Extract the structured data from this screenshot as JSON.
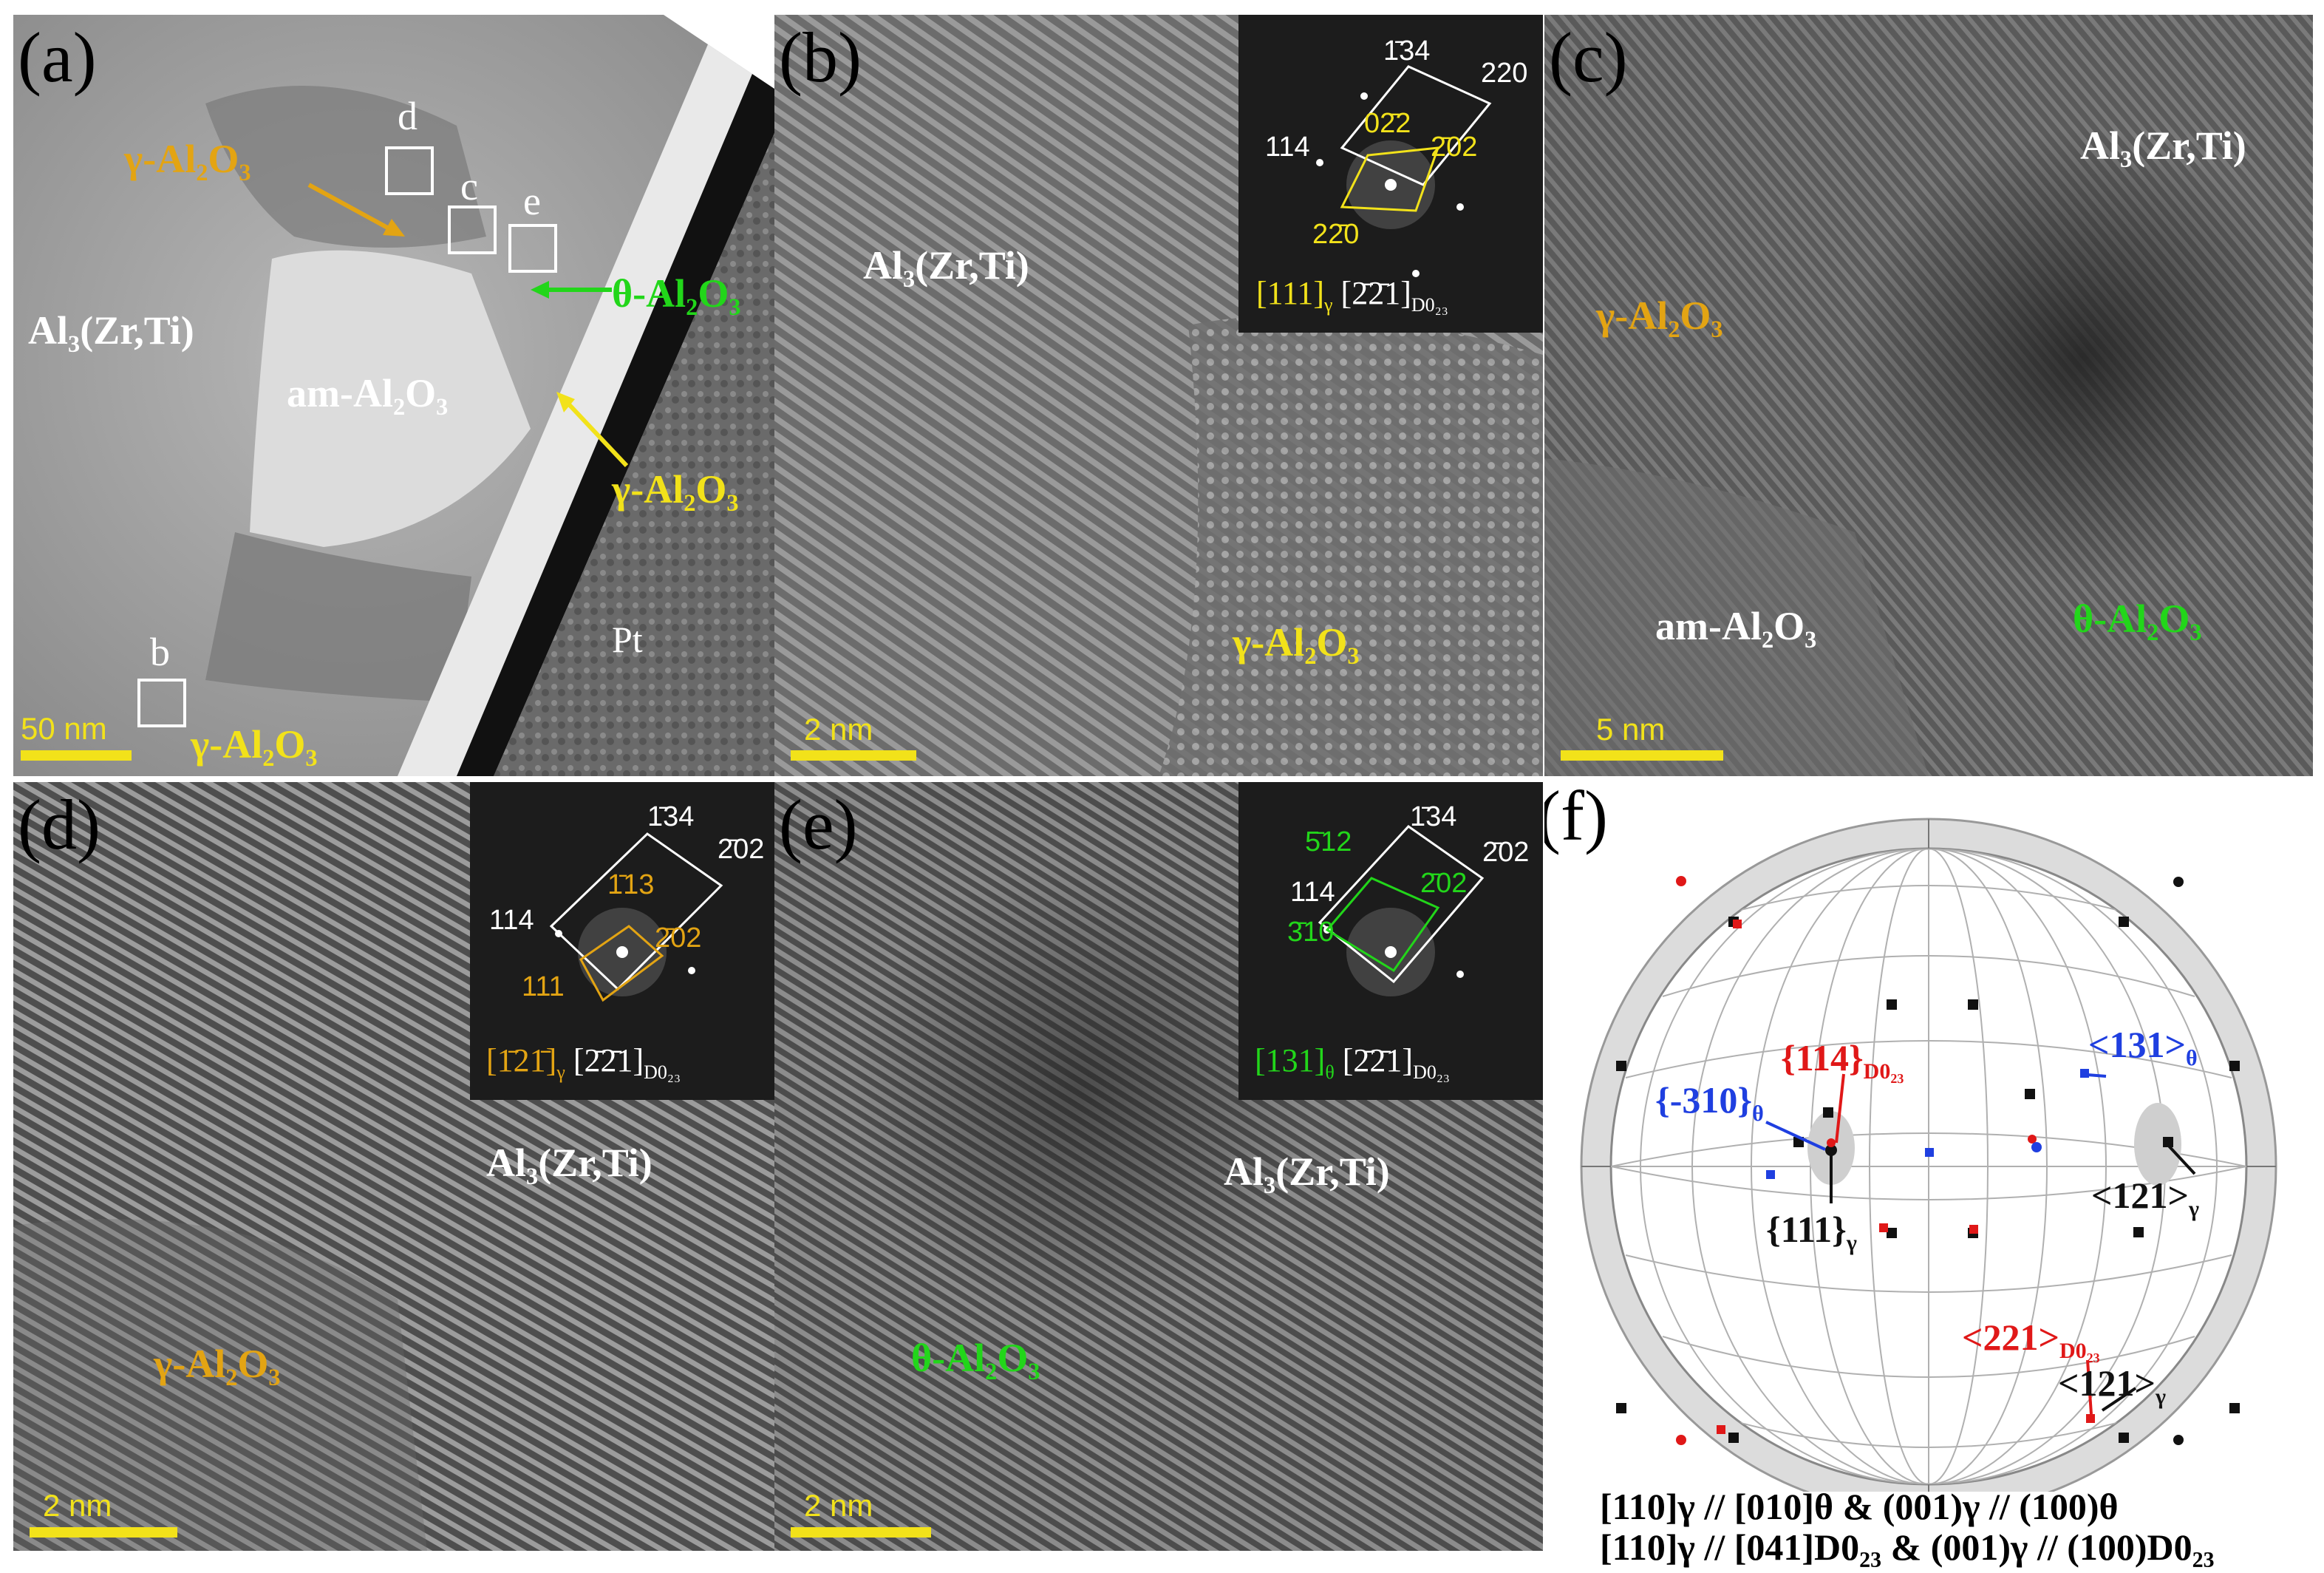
{
  "panels": {
    "a": {
      "label": "(a)",
      "phases": {
        "gamma_top": "γ-Al₂O₃",
        "matrix": "Al₃(Zr,Ti)",
        "amorphous": "am-Al₂O₃",
        "theta": "θ-Al₂O₃",
        "gamma_right": "γ-Al₂O₃",
        "gamma_bottom": "γ-Al₂O₃",
        "pt": "Pt"
      },
      "boxes": [
        "d",
        "c",
        "e",
        "b"
      ],
      "scale": "50 nm"
    },
    "b": {
      "label": "(b)",
      "phases": {
        "matrix": "Al₃(Zr,Ti)",
        "gamma": "γ-Al₂O₃"
      },
      "fft": {
        "white_indices": [
          "1̄34",
          "220",
          "114"
        ],
        "yellow_indices": [
          "02̄2",
          "2̄02",
          "22̄0"
        ],
        "zone_gamma": "[111]",
        "zone_gamma_sub": "γ",
        "zone_d023": "[2̄2̄1]",
        "zone_d023_sub": "D0₂₃"
      },
      "scale": "2 nm"
    },
    "c": {
      "label": "(c)",
      "phases": {
        "matrix": "Al₃(Zr,Ti)",
        "gamma": "γ-Al₂O₃",
        "amorphous": "am-Al₂O₃",
        "theta": "θ-Al₂O₃"
      },
      "scale": "5 nm"
    },
    "d": {
      "label": "(d)",
      "phases": {
        "matrix": "Al₃(Zr,Ti)",
        "gamma": "γ-Al₂O₃"
      },
      "fft": {
        "white_indices": [
          "1̄34",
          "2̄02",
          "114"
        ],
        "gold_indices": [
          "1̄13",
          "2̄02",
          "111"
        ],
        "zone_gamma": "[1̄21̄]",
        "zone_gamma_sub": "γ",
        "zone_d023": "[2̄2̄1]",
        "zone_d023_sub": "D0₂₃"
      },
      "scale": "2 nm"
    },
    "e": {
      "label": "(e)",
      "phases": {
        "matrix": "Al₃(Zr,Ti)",
        "theta": "θ-Al₂O₃"
      },
      "fft": {
        "white_indices": [
          "1̄34",
          "2̄02",
          "114"
        ],
        "green_indices": [
          "5̄12",
          "2̄02",
          "3̄10"
        ],
        "zone_theta": "[131]",
        "zone_theta_sub": "θ",
        "zone_d023": "[2̄2̄1]",
        "zone_d023_sub": "D0₂₃"
      },
      "scale": "2 nm"
    },
    "f": {
      "label": "(f)",
      "annotations": {
        "red_114": "{114}",
        "red_114_sub": "D0₂₃",
        "blue_310": "{-310}",
        "blue_310_sub": "θ",
        "blue_131": "<131>",
        "blue_131_sub": "θ",
        "black_111": "{111}",
        "black_111_sub": "γ",
        "black_121_top": "<121>",
        "black_121_top_sub": "γ",
        "red_221": "<221>",
        "red_221_sub": "D0₂₃",
        "black_121_bottom": "<121>",
        "black_121_bottom_sub": "γ"
      },
      "caption_line1": "[110]γ // [010]θ & (001)γ // (100)θ",
      "caption_line2": "[110]γ // [041]D0₂₃ & (001)γ // (100)D0₂₃",
      "colors": {
        "d023": "#e01818",
        "theta": "#1f3fe0",
        "gamma": "#111111"
      }
    }
  },
  "colors": {
    "gamma": "#e3a413",
    "yellow": "#f2e21a",
    "theta": "#22d61a",
    "white": "#ffffff"
  }
}
